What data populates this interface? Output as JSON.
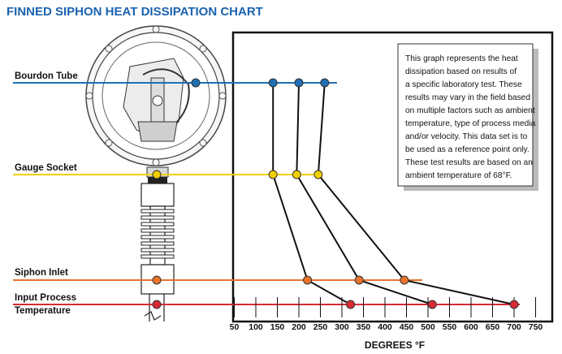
{
  "title": "FINNED SIPHON HEAT DISSIPATION CHART",
  "note_lines": [
    "This graph represents the heat",
    "dissipation based on results of",
    "a specific laboratory test. These",
    "results may vary in the field based",
    "on multiple factors such as ambient",
    "temperature, type of process media",
    "and/or velocity. This data set is to",
    "be used as a reference point only.",
    "These test results are based on an",
    "ambient temperature of 68°F."
  ],
  "colors": {
    "title": "#1a63b0",
    "bourdon_tube": "#1f6fb2",
    "gauge_socket": "#f2d000",
    "siphon_inlet": "#e8742a",
    "input_process": "#d62b35",
    "frame": "#111111"
  },
  "icons": {
    "gauge": "pressure-gauge-illustration",
    "siphon": "finned-siphon-illustration"
  },
  "chart_data": {
    "type": "line",
    "title": "FINNED SIPHON HEAT DISSIPATION CHART",
    "xlabel": "DEGREES °F",
    "ylabel": "",
    "xlim": [
      0,
      775
    ],
    "x_ticks": [
      50,
      100,
      150,
      200,
      250,
      300,
      350,
      400,
      450,
      500,
      550,
      600,
      650,
      700,
      750
    ],
    "grid": false,
    "categories": [
      "Bourdon Tube",
      "Gauge Socket",
      "Siphon Inlet",
      "Input Process Temperature"
    ],
    "category_colors": [
      "#1f6fb2",
      "#f2d000",
      "#e8742a",
      "#d62b35"
    ],
    "series": [
      {
        "values": [
          140,
          140,
          220,
          320
        ]
      },
      {
        "values": [
          200,
          195,
          340,
          510
        ]
      },
      {
        "values": [
          260,
          245,
          445,
          700
        ]
      }
    ]
  }
}
